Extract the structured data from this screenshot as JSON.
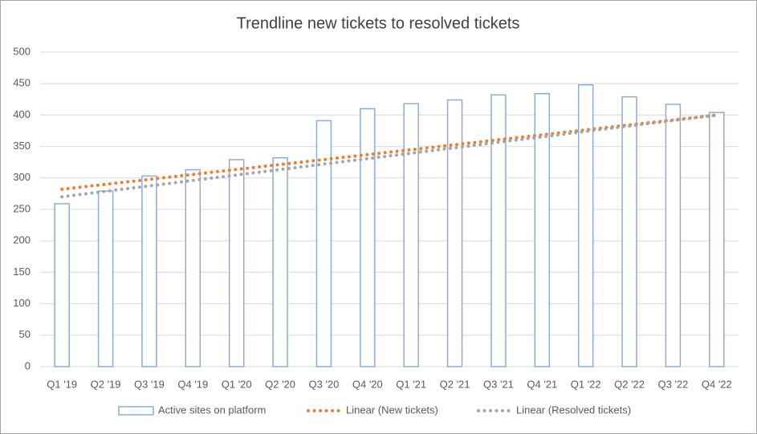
{
  "chart_data": {
    "type": "bar",
    "title": "Trendline new tickets to resolved tickets",
    "categories": [
      "Q1 '19",
      "Q2 '19",
      "Q3 '19",
      "Q4 '19",
      "Q1 '20",
      "Q2 '20",
      "Q3 '20",
      "Q4 '20",
      "Q1 '21",
      "Q2 '21",
      "Q3 '21",
      "Q4 '21",
      "Q1 '22",
      "Q2 '22",
      "Q3 '22",
      "Q4 '22"
    ],
    "series": [
      {
        "name": "Active sites on platform",
        "type": "bar",
        "color": "#8eaad8",
        "values": [
          259,
          279,
          303,
          313,
          329,
          332,
          391,
          410,
          418,
          424,
          432,
          434,
          448,
          429,
          417,
          404
        ]
      },
      {
        "name": "Linear (New tickets)",
        "type": "line",
        "color": "#ed7d31",
        "values": [
          282,
          289.9,
          297.7,
          305.6,
          313.5,
          321.3,
          329.2,
          337.1,
          344.9,
          352.8,
          360.7,
          368.5,
          376.4,
          384.3,
          392.1,
          400
        ]
      },
      {
        "name": "Linear (Resolved tickets)",
        "type": "line",
        "color": "#a5a5a5",
        "values": [
          270,
          278.7,
          287.3,
          296,
          304.7,
          313.3,
          322,
          330.7,
          339.3,
          348,
          356.7,
          365.3,
          374,
          382.7,
          391.3,
          400
        ]
      }
    ],
    "ylim": [
      0,
      500
    ],
    "yticks": [
      0,
      50,
      100,
      150,
      200,
      250,
      300,
      350,
      400,
      450,
      500
    ],
    "grid": true,
    "legend": "bottom"
  }
}
